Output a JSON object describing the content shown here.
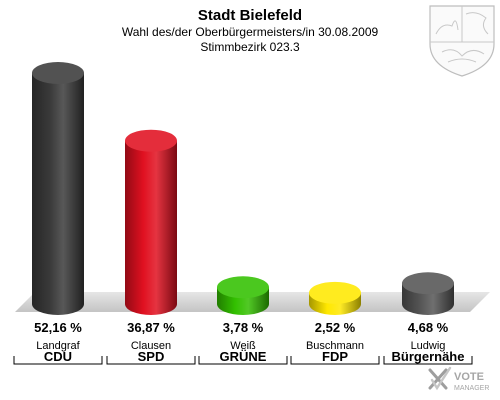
{
  "header": {
    "title": "Stadt Bielefeld",
    "subtitle": "Wahl des/der Oberbürgermeisters/in 30.08.2009",
    "district": "Stimmbezirk 023.3"
  },
  "emblem": {
    "icon": "coat-of-arms-icon"
  },
  "watermark": {
    "text_line1": "VOTE",
    "text_line2": "MANAGER",
    "icon": "check-x-icon"
  },
  "chart_data": {
    "type": "bar",
    "categories": [
      "CDU",
      "SPD",
      "GRÜNE",
      "FDP",
      "Bürgernähe"
    ],
    "candidates": [
      "Landgraf",
      "Clausen",
      "Weiß",
      "Buschmann",
      "Ludwig"
    ],
    "values": [
      52.16,
      36.87,
      3.78,
      2.52,
      4.68
    ],
    "value_labels": [
      "52,16 %",
      "36,87 %",
      "3,78 %",
      "2,52 %",
      "4,68 %"
    ],
    "colors": [
      "#3a3a3a",
      "#e01020",
      "#33c000",
      "#ffe800",
      "#555555"
    ],
    "ylim": [
      0,
      52.16
    ],
    "grid": false,
    "legend": "none"
  }
}
